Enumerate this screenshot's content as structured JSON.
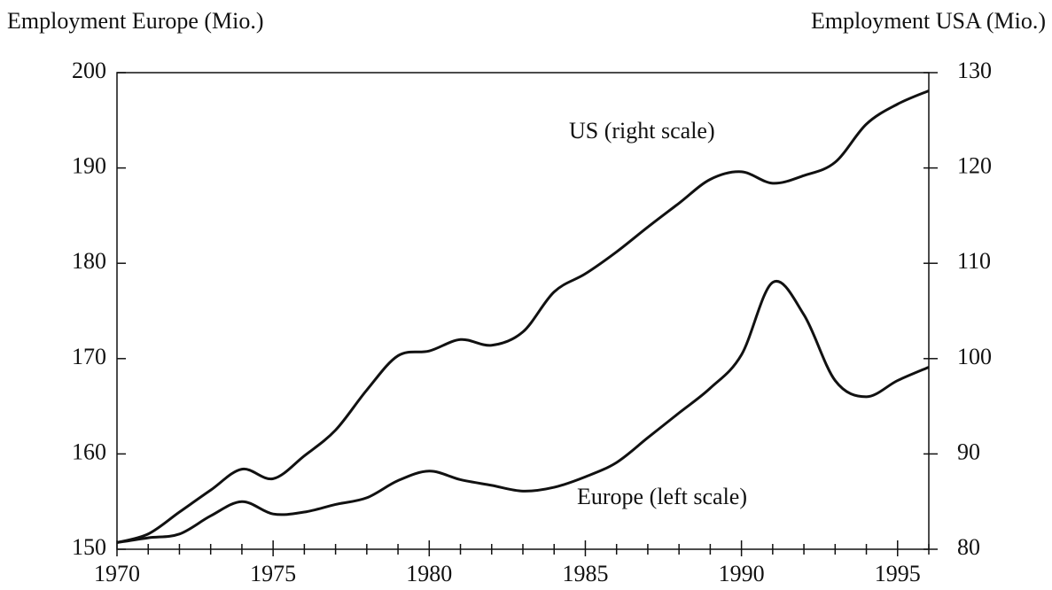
{
  "chart_data": {
    "type": "line",
    "y_label": "Employment Europe (Mio.)",
    "y2_label": "Employment USA (Mio.)",
    "x": [
      1970,
      1971,
      1972,
      1973,
      1974,
      1975,
      1976,
      1977,
      1978,
      1979,
      1980,
      1981,
      1982,
      1983,
      1984,
      1985,
      1986,
      1987,
      1988,
      1989,
      1990,
      1991,
      1992,
      1993,
      1994,
      1995,
      1996
    ],
    "series": [
      {
        "name": "Europe (left scale)",
        "color": "#111111",
        "axis": "y",
        "values": [
          150.7,
          151.2,
          151.6,
          153.5,
          155.0,
          153.7,
          153.9,
          154.7,
          155.4,
          157.2,
          158.2,
          157.3,
          156.7,
          156.1,
          156.5,
          157.6,
          159.1,
          161.7,
          164.3,
          166.9,
          170.4,
          178.0,
          174.6,
          167.7,
          166.0,
          167.7,
          169.1
        ]
      },
      {
        "name": "US (right scale)",
        "color": "#111111",
        "axis": "y2",
        "values": [
          80.7,
          81.6,
          83.9,
          86.2,
          88.4,
          87.4,
          89.8,
          92.5,
          96.7,
          100.3,
          100.8,
          102.0,
          101.4,
          102.8,
          107.0,
          108.9,
          111.2,
          113.8,
          116.3,
          118.8,
          119.6,
          118.4,
          119.2,
          120.6,
          124.6,
          126.7,
          128.1
        ]
      }
    ],
    "xlim": [
      1970,
      1996
    ],
    "xticks": [
      1970,
      1975,
      1980,
      1985,
      1990,
      1995
    ],
    "xminorticks": [
      1971,
      1972,
      1973,
      1974,
      1976,
      1977,
      1978,
      1979,
      1981,
      1982,
      1983,
      1984,
      1986,
      1987,
      1988,
      1989,
      1991,
      1992,
      1993,
      1994,
      1996
    ],
    "ylim": [
      150,
      200
    ],
    "yticks": [
      150,
      160,
      170,
      180,
      190,
      200
    ],
    "y2lim": [
      80,
      130
    ],
    "y2ticks": [
      80,
      90,
      100,
      110,
      120,
      130
    ],
    "grid": false
  }
}
